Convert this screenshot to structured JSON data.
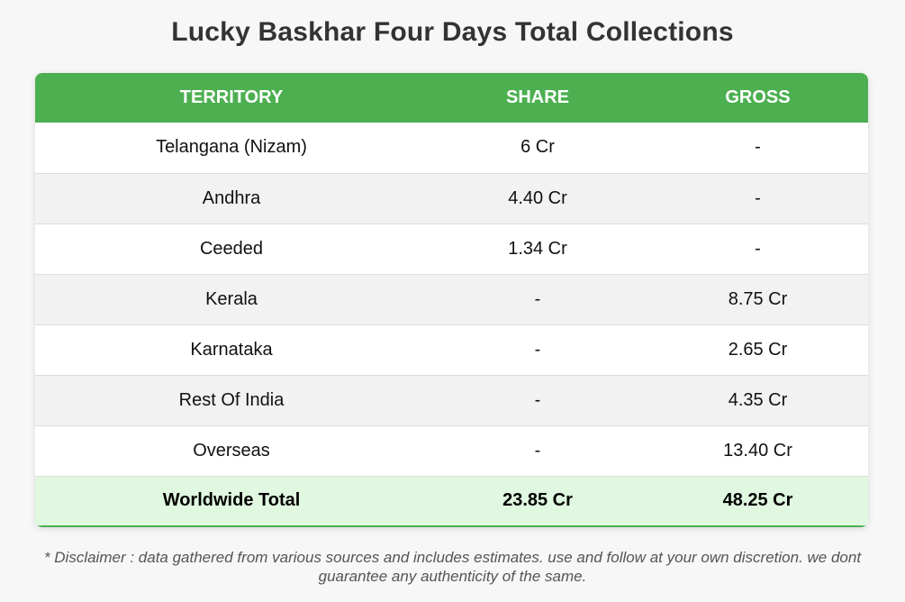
{
  "title": "Lucky Baskhar Four Days Total Collections",
  "colors": {
    "header_bg": "#4caf50",
    "total_bg": "#e0f7e0",
    "row_alt_bg": "#f2f2f2"
  },
  "table": {
    "headers": [
      "TERRITORY",
      "SHARE",
      "GROSS"
    ],
    "rows": [
      {
        "territory": "Telangana (Nizam)",
        "share": "6 Cr",
        "gross": "-"
      },
      {
        "territory": "Andhra",
        "share": "4.40 Cr",
        "gross": "-"
      },
      {
        "territory": "Ceeded",
        "share": "1.34 Cr",
        "gross": "-"
      },
      {
        "territory": "Kerala",
        "share": "-",
        "gross": "8.75 Cr"
      },
      {
        "territory": "Karnataka",
        "share": "-",
        "gross": "2.65 Cr"
      },
      {
        "territory": "Rest Of India",
        "share": "-",
        "gross": "4.35 Cr"
      },
      {
        "territory": "Overseas",
        "share": "-",
        "gross": "13.40 Cr"
      }
    ],
    "total": {
      "territory": "Worldwide Total",
      "share": "23.85 Cr",
      "gross": "48.25 Cr"
    }
  },
  "disclaimer": "* Disclaimer : data gathered from various sources and includes estimates. use and follow at your own discretion. we dont guarantee any authenticity of the same."
}
